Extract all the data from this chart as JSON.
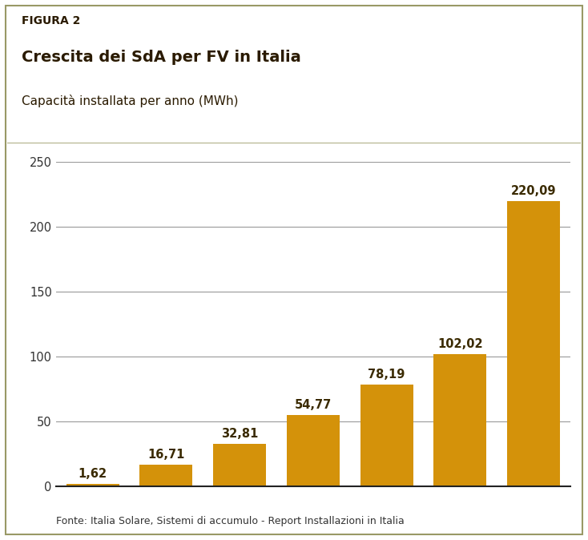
{
  "values": [
    1.62,
    16.71,
    32.81,
    54.77,
    78.19,
    102.02,
    220.09
  ],
  "bar_color": "#D4920A",
  "header_bg_color": "#D4920A",
  "figure_label": "FIGURA 2",
  "title_main": "Crescita dei SdA per FV in Italia",
  "title_sub": "Capacità installata per anno (MWh)",
  "footer_text": "Fonte: Italia Solare, Sistemi di accumulo - Report Installazioni in Italia",
  "ylim": [
    0,
    250
  ],
  "yticks": [
    0,
    50,
    100,
    150,
    200,
    250
  ],
  "background_color": "#ffffff",
  "grid_color": "#999999",
  "bar_label_color": "#3a2a00",
  "value_labels": [
    "1,62",
    "16,71",
    "32,81",
    "54,77",
    "78,19",
    "102,02",
    "220,09"
  ],
  "label_fontsize": 10.5,
  "title_main_fontsize": 14,
  "title_sub_fontsize": 11,
  "figure_label_fontsize": 10,
  "footer_fontsize": 9,
  "ytick_fontsize": 10.5,
  "header_text_color": "#2a1a00",
  "border_color": "#999966"
}
